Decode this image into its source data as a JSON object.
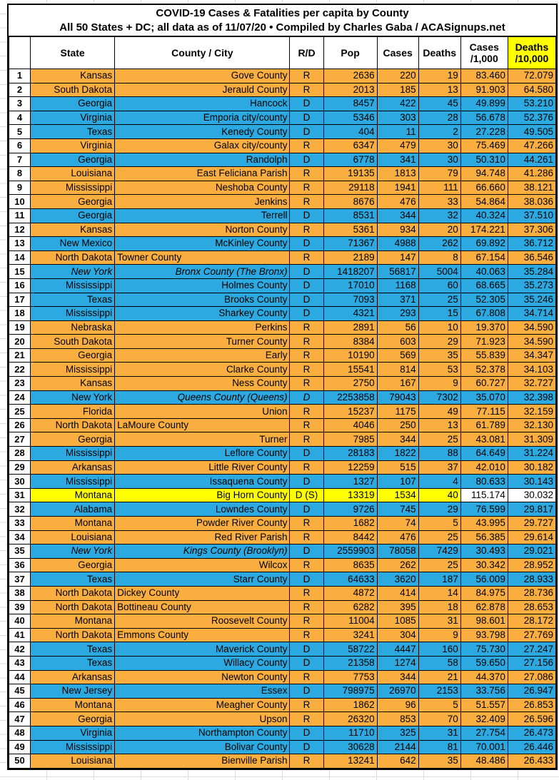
{
  "title": {
    "line1": "COVID-19 Cases & Fatalities per capita by County",
    "line2": "All 50 States + DC; all data as of 11/07/20  • Compiled by Charles Gaba / ACASignups.net"
  },
  "columns": [
    {
      "label": ""
    },
    {
      "label": "State"
    },
    {
      "label": "County / City"
    },
    {
      "label": "R/D"
    },
    {
      "label": "Pop"
    },
    {
      "label": "Cases"
    },
    {
      "label": "Deaths"
    },
    {
      "label": "Cases",
      "label2": "/1,000"
    },
    {
      "label": "Deaths",
      "label2": "/10,000",
      "highlight": true
    }
  ],
  "colors": {
    "republican_row": "#FAAE3F",
    "democrat_row": "#2BA9E0",
    "highlight_row": "#FFFF00",
    "header_highlight": "#FFFF00",
    "border": "#000000",
    "sheet_gridline": "#DCDCDC"
  },
  "rows": [
    {
      "rank": "1",
      "state": "Kansas",
      "county": "Gove County",
      "rd": "R",
      "party": "R",
      "pop": "2636",
      "cases": "220",
      "deaths": "19",
      "cases_per_1000": "83.460",
      "deaths_per_10000": "72.079"
    },
    {
      "rank": "2",
      "state": "South Dakota",
      "county": "Jerauld County",
      "rd": "R",
      "party": "R",
      "pop": "2013",
      "cases": "185",
      "deaths": "13",
      "cases_per_1000": "91.903",
      "deaths_per_10000": "64.580"
    },
    {
      "rank": "3",
      "state": "Georgia",
      "county": "Hancock",
      "rd": "D",
      "party": "D",
      "pop": "8457",
      "cases": "422",
      "deaths": "45",
      "cases_per_1000": "49.899",
      "deaths_per_10000": "53.210"
    },
    {
      "rank": "4",
      "state": "Virginia",
      "county": "Emporia city/county",
      "rd": "D",
      "party": "D",
      "pop": "5346",
      "cases": "303",
      "deaths": "28",
      "cases_per_1000": "56.678",
      "deaths_per_10000": "52.376"
    },
    {
      "rank": "5",
      "state": "Texas",
      "county": "Kenedy County",
      "rd": "D",
      "party": "D",
      "pop": "404",
      "cases": "11",
      "deaths": "2",
      "cases_per_1000": "27.228",
      "deaths_per_10000": "49.505"
    },
    {
      "rank": "6",
      "state": "Virginia",
      "county": "Galax city/county",
      "rd": "R",
      "party": "R",
      "pop": "6347",
      "cases": "479",
      "deaths": "30",
      "cases_per_1000": "75.469",
      "deaths_per_10000": "47.266"
    },
    {
      "rank": "7",
      "state": "Georgia",
      "county": "Randolph",
      "rd": "D",
      "party": "D",
      "pop": "6778",
      "cases": "341",
      "deaths": "30",
      "cases_per_1000": "50.310",
      "deaths_per_10000": "44.261"
    },
    {
      "rank": "8",
      "state": "Louisiana",
      "county": "East Feliciana Parish",
      "rd": "R",
      "party": "R",
      "pop": "19135",
      "cases": "1813",
      "deaths": "79",
      "cases_per_1000": "94.748",
      "deaths_per_10000": "41.286"
    },
    {
      "rank": "9",
      "state": "Mississippi",
      "county": "Neshoba County",
      "rd": "R",
      "party": "R",
      "pop": "29118",
      "cases": "1941",
      "deaths": "111",
      "cases_per_1000": "66.660",
      "deaths_per_10000": "38.121"
    },
    {
      "rank": "10",
      "state": "Georgia",
      "county": "Jenkins",
      "rd": "R",
      "party": "R",
      "pop": "8676",
      "cases": "476",
      "deaths": "33",
      "cases_per_1000": "54.864",
      "deaths_per_10000": "38.036"
    },
    {
      "rank": "11",
      "state": "Georgia",
      "county": "Terrell",
      "rd": "D",
      "party": "D",
      "pop": "8531",
      "cases": "344",
      "deaths": "32",
      "cases_per_1000": "40.324",
      "deaths_per_10000": "37.510"
    },
    {
      "rank": "12",
      "state": "Kansas",
      "county": "Norton County",
      "rd": "R",
      "party": "R",
      "pop": "5361",
      "cases": "934",
      "deaths": "20",
      "cases_per_1000": "174.221",
      "deaths_per_10000": "37.306"
    },
    {
      "rank": "13",
      "state": "New Mexico",
      "county": "McKinley County",
      "rd": "D",
      "party": "D",
      "pop": "71367",
      "cases": "4988",
      "deaths": "262",
      "cases_per_1000": "69.892",
      "deaths_per_10000": "36.712"
    },
    {
      "rank": "14",
      "state": "North Dakota",
      "county": "Towner County",
      "rd": "R",
      "party": "R",
      "county_left": true,
      "pop": "2189",
      "cases": "147",
      "deaths": "8",
      "cases_per_1000": "67.154",
      "deaths_per_10000": "36.546"
    },
    {
      "rank": "15",
      "state": "New York",
      "county": "Bronx County (The Bronx)",
      "rd": "D",
      "party": "D",
      "state_italic": true,
      "county_italic": true,
      "pop": "1418207",
      "cases": "56817",
      "deaths": "5004",
      "cases_per_1000": "40.063",
      "deaths_per_10000": "35.284"
    },
    {
      "rank": "16",
      "state": "Mississippi",
      "county": "Holmes County",
      "rd": "D",
      "party": "D",
      "pop": "17010",
      "cases": "1168",
      "deaths": "60",
      "cases_per_1000": "68.665",
      "deaths_per_10000": "35.273"
    },
    {
      "rank": "17",
      "state": "Texas",
      "county": "Brooks County",
      "rd": "D",
      "party": "D",
      "pop": "7093",
      "cases": "371",
      "deaths": "25",
      "cases_per_1000": "52.305",
      "deaths_per_10000": "35.246"
    },
    {
      "rank": "18",
      "state": "Mississippi",
      "county": "Sharkey County",
      "rd": "D",
      "party": "D",
      "pop": "4321",
      "cases": "293",
      "deaths": "15",
      "cases_per_1000": "67.808",
      "deaths_per_10000": "34.714"
    },
    {
      "rank": "19",
      "state": "Nebraska",
      "county": "Perkins",
      "rd": "R",
      "party": "R",
      "pop": "2891",
      "cases": "56",
      "deaths": "10",
      "cases_per_1000": "19.370",
      "deaths_per_10000": "34.590"
    },
    {
      "rank": "20",
      "state": "South Dakota",
      "county": "Turner County",
      "rd": "R",
      "party": "R",
      "pop": "8384",
      "cases": "603",
      "deaths": "29",
      "cases_per_1000": "71.923",
      "deaths_per_10000": "34.590"
    },
    {
      "rank": "21",
      "state": "Georgia",
      "county": "Early",
      "rd": "R",
      "party": "R",
      "pop": "10190",
      "cases": "569",
      "deaths": "35",
      "cases_per_1000": "55.839",
      "deaths_per_10000": "34.347"
    },
    {
      "rank": "22",
      "state": "Mississippi",
      "county": "Clarke County",
      "rd": "R",
      "party": "R",
      "pop": "15541",
      "cases": "814",
      "deaths": "53",
      "cases_per_1000": "52.378",
      "deaths_per_10000": "34.103"
    },
    {
      "rank": "23",
      "state": "Kansas",
      "county": "Ness County",
      "rd": "R",
      "party": "R",
      "pop": "2750",
      "cases": "167",
      "deaths": "9",
      "cases_per_1000": "60.727",
      "deaths_per_10000": "32.727"
    },
    {
      "rank": "24",
      "state": "New York",
      "county": "Queens County (Queens)",
      "rd": "D",
      "party": "D",
      "county_italic": true,
      "rd_italic": true,
      "pop": "2253858",
      "cases": "79043",
      "deaths": "7302",
      "cases_per_1000": "35.070",
      "deaths_per_10000": "32.398"
    },
    {
      "rank": "25",
      "state": "Florida",
      "county": "Union",
      "rd": "R",
      "party": "R",
      "pop": "15237",
      "cases": "1175",
      "deaths": "49",
      "cases_per_1000": "77.115",
      "deaths_per_10000": "32.159"
    },
    {
      "rank": "26",
      "state": "North Dakota",
      "county": "LaMoure County",
      "rd": "R",
      "party": "R",
      "county_left": true,
      "pop": "4046",
      "cases": "250",
      "deaths": "13",
      "cases_per_1000": "61.789",
      "deaths_per_10000": "32.130"
    },
    {
      "rank": "27",
      "state": "Georgia",
      "county": "Turner",
      "rd": "R",
      "party": "R",
      "pop": "7985",
      "cases": "344",
      "deaths": "25",
      "cases_per_1000": "43.081",
      "deaths_per_10000": "31.309"
    },
    {
      "rank": "28",
      "state": "Mississippi",
      "county": "Leflore County",
      "rd": "D",
      "party": "D",
      "pop": "28183",
      "cases": "1822",
      "deaths": "88",
      "cases_per_1000": "64.649",
      "deaths_per_10000": "31.224"
    },
    {
      "rank": "29",
      "state": "Arkansas",
      "county": "Little River County",
      "rd": "R",
      "party": "R",
      "pop": "12259",
      "cases": "515",
      "deaths": "37",
      "cases_per_1000": "42.010",
      "deaths_per_10000": "30.182"
    },
    {
      "rank": "30",
      "state": "Mississippi",
      "county": "Issaquena County",
      "rd": "D",
      "party": "D",
      "pop": "1327",
      "cases": "107",
      "deaths": "4",
      "cases_per_1000": "80.633",
      "deaths_per_10000": "30.143"
    },
    {
      "rank": "31",
      "state": "Montana",
      "county": "Big Horn County",
      "rd": "D (S)",
      "party": "DS",
      "tail_plain": true,
      "pop": "13319",
      "cases": "1534",
      "deaths": "40",
      "cases_per_1000": "115.174",
      "deaths_per_10000": "30.032"
    },
    {
      "rank": "32",
      "state": "Alabama",
      "county": "Lowndes County",
      "rd": "D",
      "party": "D",
      "pop": "9726",
      "cases": "745",
      "deaths": "29",
      "cases_per_1000": "76.599",
      "deaths_per_10000": "29.817"
    },
    {
      "rank": "33",
      "state": "Montana",
      "county": "Powder River County",
      "rd": "R",
      "party": "R",
      "pop": "1682",
      "cases": "74",
      "deaths": "5",
      "cases_per_1000": "43.995",
      "deaths_per_10000": "29.727"
    },
    {
      "rank": "34",
      "state": "Louisiana",
      "county": "Red River Parish",
      "rd": "R",
      "party": "R",
      "pop": "8442",
      "cases": "476",
      "deaths": "25",
      "cases_per_1000": "56.385",
      "deaths_per_10000": "29.614"
    },
    {
      "rank": "35",
      "state": "New York",
      "county": "Kings County (Brooklyn)",
      "rd": "D",
      "party": "D",
      "state_italic": true,
      "county_italic": true,
      "pop": "2559903",
      "cases": "78058",
      "deaths": "7429",
      "cases_per_1000": "30.493",
      "deaths_per_10000": "29.021"
    },
    {
      "rank": "36",
      "state": "Georgia",
      "county": "Wilcox",
      "rd": "R",
      "party": "R",
      "pop": "8635",
      "cases": "262",
      "deaths": "25",
      "cases_per_1000": "30.342",
      "deaths_per_10000": "28.952"
    },
    {
      "rank": "37",
      "state": "Texas",
      "county": "Starr County",
      "rd": "D",
      "party": "D",
      "pop": "64633",
      "cases": "3620",
      "deaths": "187",
      "cases_per_1000": "56.009",
      "deaths_per_10000": "28.933"
    },
    {
      "rank": "38",
      "state": "North Dakota",
      "county": "Dickey County",
      "rd": "R",
      "party": "R",
      "county_left": true,
      "pop": "4872",
      "cases": "414",
      "deaths": "14",
      "cases_per_1000": "84.975",
      "deaths_per_10000": "28.736"
    },
    {
      "rank": "39",
      "state": "North Dakota",
      "county": "Bottineau County",
      "rd": "R",
      "party": "R",
      "county_left": true,
      "pop": "6282",
      "cases": "395",
      "deaths": "18",
      "cases_per_1000": "62.878",
      "deaths_per_10000": "28.653"
    },
    {
      "rank": "40",
      "state": "Montana",
      "county": "Roosevelt County",
      "rd": "R",
      "party": "R",
      "pop": "11004",
      "cases": "1085",
      "deaths": "31",
      "cases_per_1000": "98.601",
      "deaths_per_10000": "28.172"
    },
    {
      "rank": "41",
      "state": "North Dakota",
      "county": "Emmons County",
      "rd": "R",
      "party": "R",
      "county_left": true,
      "pop": "3241",
      "cases": "304",
      "deaths": "9",
      "cases_per_1000": "93.798",
      "deaths_per_10000": "27.769"
    },
    {
      "rank": "42",
      "state": "Texas",
      "county": "Maverick County",
      "rd": "D",
      "party": "D",
      "pop": "58722",
      "cases": "4447",
      "deaths": "160",
      "cases_per_1000": "75.730",
      "deaths_per_10000": "27.247"
    },
    {
      "rank": "43",
      "state": "Texas",
      "county": "Willacy County",
      "rd": "D",
      "party": "D",
      "pop": "21358",
      "cases": "1274",
      "deaths": "58",
      "cases_per_1000": "59.650",
      "deaths_per_10000": "27.156"
    },
    {
      "rank": "44",
      "state": "Arkansas",
      "county": "Newton County",
      "rd": "R",
      "party": "R",
      "pop": "7753",
      "cases": "344",
      "deaths": "21",
      "cases_per_1000": "44.370",
      "deaths_per_10000": "27.086"
    },
    {
      "rank": "45",
      "state": "New Jersey",
      "county": "Essex",
      "rd": "D",
      "party": "D",
      "pop": "798975",
      "cases": "26970",
      "deaths": "2153",
      "cases_per_1000": "33.756",
      "deaths_per_10000": "26.947"
    },
    {
      "rank": "46",
      "state": "Montana",
      "county": "Meagher County",
      "rd": "R",
      "party": "R",
      "pop": "1862",
      "cases": "96",
      "deaths": "5",
      "cases_per_1000": "51.557",
      "deaths_per_10000": "26.853"
    },
    {
      "rank": "47",
      "state": "Georgia",
      "county": "Upson",
      "rd": "R",
      "party": "R",
      "pop": "26320",
      "cases": "853",
      "deaths": "70",
      "cases_per_1000": "32.409",
      "deaths_per_10000": "26.596"
    },
    {
      "rank": "48",
      "state": "Virginia",
      "county": "Northampton County",
      "rd": "D",
      "party": "D",
      "pop": "11710",
      "cases": "325",
      "deaths": "31",
      "cases_per_1000": "27.754",
      "deaths_per_10000": "26.473"
    },
    {
      "rank": "49",
      "state": "Mississippi",
      "county": "Bolivar County",
      "rd": "D",
      "party": "D",
      "pop": "30628",
      "cases": "2144",
      "deaths": "81",
      "cases_per_1000": "70.001",
      "deaths_per_10000": "26.446"
    },
    {
      "rank": "50",
      "state": "Louisiana",
      "county": "Bienville Parish",
      "rd": "R",
      "party": "R",
      "pop": "13241",
      "cases": "642",
      "deaths": "35",
      "cases_per_1000": "48.486",
      "deaths_per_10000": "26.433"
    }
  ]
}
